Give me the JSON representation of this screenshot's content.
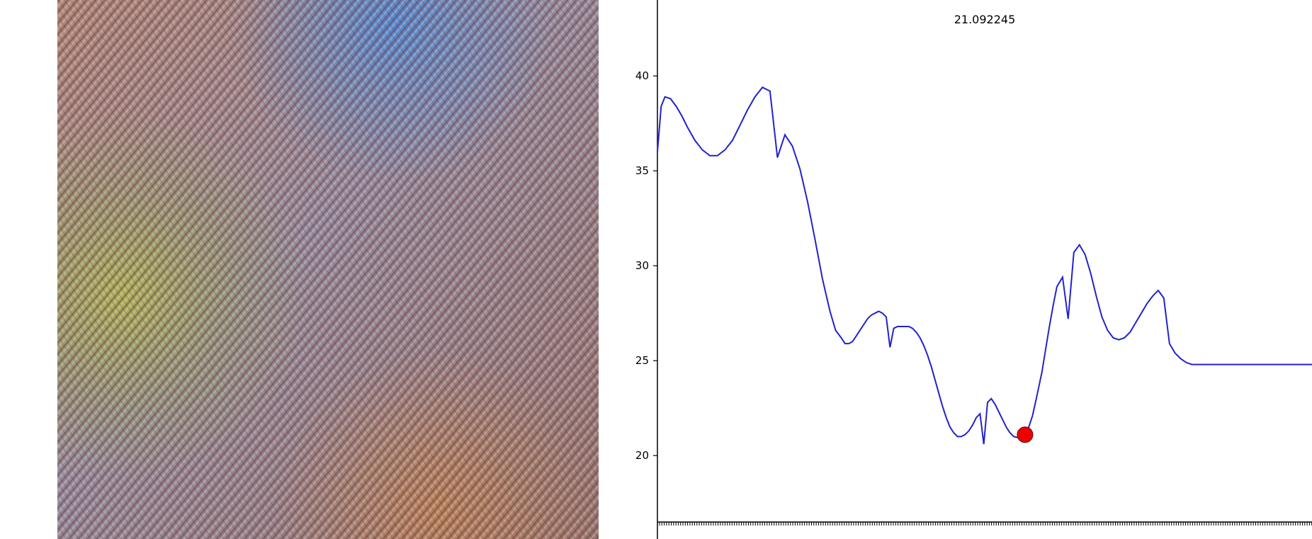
{
  "image_panel": {
    "description_colors": [
      "#b8605a",
      "#6f8fb0",
      "#c9a24a",
      "#7fa35a",
      "#4a7fc8",
      "#9a4a5a"
    ]
  },
  "chart_data": {
    "type": "line",
    "value_label": "21.092245",
    "ylim": [
      16.5,
      44
    ],
    "yticks": [
      "20",
      "25",
      "30",
      "35",
      "40"
    ],
    "ytick_values": [
      20,
      25,
      30,
      35,
      40
    ],
    "grid": false,
    "line_color": "#2222cc",
    "marker": {
      "x": 196,
      "y": 21.1,
      "color": "#ee0000"
    },
    "xlim": [
      0,
      349
    ],
    "x": [
      0,
      2,
      4,
      7,
      10,
      13,
      16,
      20,
      24,
      28,
      32,
      36,
      40,
      44,
      48,
      52,
      56,
      60,
      64,
      68,
      72,
      76,
      80,
      84,
      88,
      92,
      95,
      98,
      100,
      102,
      104,
      106,
      108,
      110,
      112,
      114,
      116,
      118,
      120,
      122,
      124,
      126,
      128,
      130,
      132,
      134,
      136,
      138,
      140,
      142,
      144,
      146,
      148,
      150,
      152,
      154,
      156,
      158,
      160,
      162,
      164,
      166,
      168,
      170,
      172,
      174,
      176,
      178,
      180,
      182,
      184,
      186,
      188,
      190,
      192,
      194,
      196,
      198,
      200,
      202,
      205,
      207,
      209,
      211,
      213,
      216,
      219,
      222,
      225,
      228,
      231,
      234,
      237,
      240,
      243,
      246,
      249,
      252,
      255,
      258,
      261,
      264,
      267,
      270,
      273,
      276,
      279,
      282,
      285,
      288,
      291,
      294,
      297,
      300,
      303,
      306,
      309,
      312,
      315,
      318,
      321,
      324,
      327,
      330,
      333,
      336,
      339,
      342,
      345,
      349
    ],
    "y": [
      36,
      38.4,
      38.9,
      38.8,
      38.4,
      37.9,
      37.3,
      36.6,
      36.1,
      35.8,
      35.8,
      36.1,
      36.6,
      37.4,
      38.2,
      38.9,
      39.4,
      39.2,
      35.7,
      36.9,
      36.3,
      35.1,
      33.4,
      31.4,
      29.3,
      27.6,
      26.6,
      26.2,
      25.9,
      25.9,
      26.0,
      26.3,
      26.6,
      26.9,
      27.2,
      27.4,
      27.5,
      27.6,
      27.5,
      27.3,
      25.7,
      26.7,
      26.8,
      26.8,
      26.8,
      26.8,
      26.7,
      26.5,
      26.2,
      25.8,
      25.3,
      24.7,
      24.0,
      23.3,
      22.6,
      22.0,
      21.5,
      21.2,
      21.0,
      21.0,
      21.1,
      21.3,
      21.6,
      22.0,
      22.2,
      20.6,
      22.8,
      23.0,
      22.7,
      22.3,
      21.9,
      21.5,
      21.2,
      21.0,
      20.95,
      20.95,
      21.1,
      21.5,
      22.1,
      23.0,
      24.4,
      25.6,
      26.8,
      27.9,
      28.9,
      29.4,
      27.2,
      30.7,
      31.1,
      30.6,
      29.6,
      28.4,
      27.3,
      26.6,
      26.2,
      26.1,
      26.2,
      26.5,
      27.0,
      27.5,
      28.0,
      28.4,
      28.7,
      28.3,
      25.9,
      25.4,
      25.1,
      24.9,
      24.8,
      24.8,
      24.8,
      24.8,
      24.8,
      24.8,
      24.8,
      24.8,
      24.8,
      24.8,
      24.8,
      24.8,
      24.8,
      24.8,
      24.8,
      24.8,
      24.8,
      24.8,
      24.8,
      24.8,
      24.8,
      24.8
    ]
  }
}
